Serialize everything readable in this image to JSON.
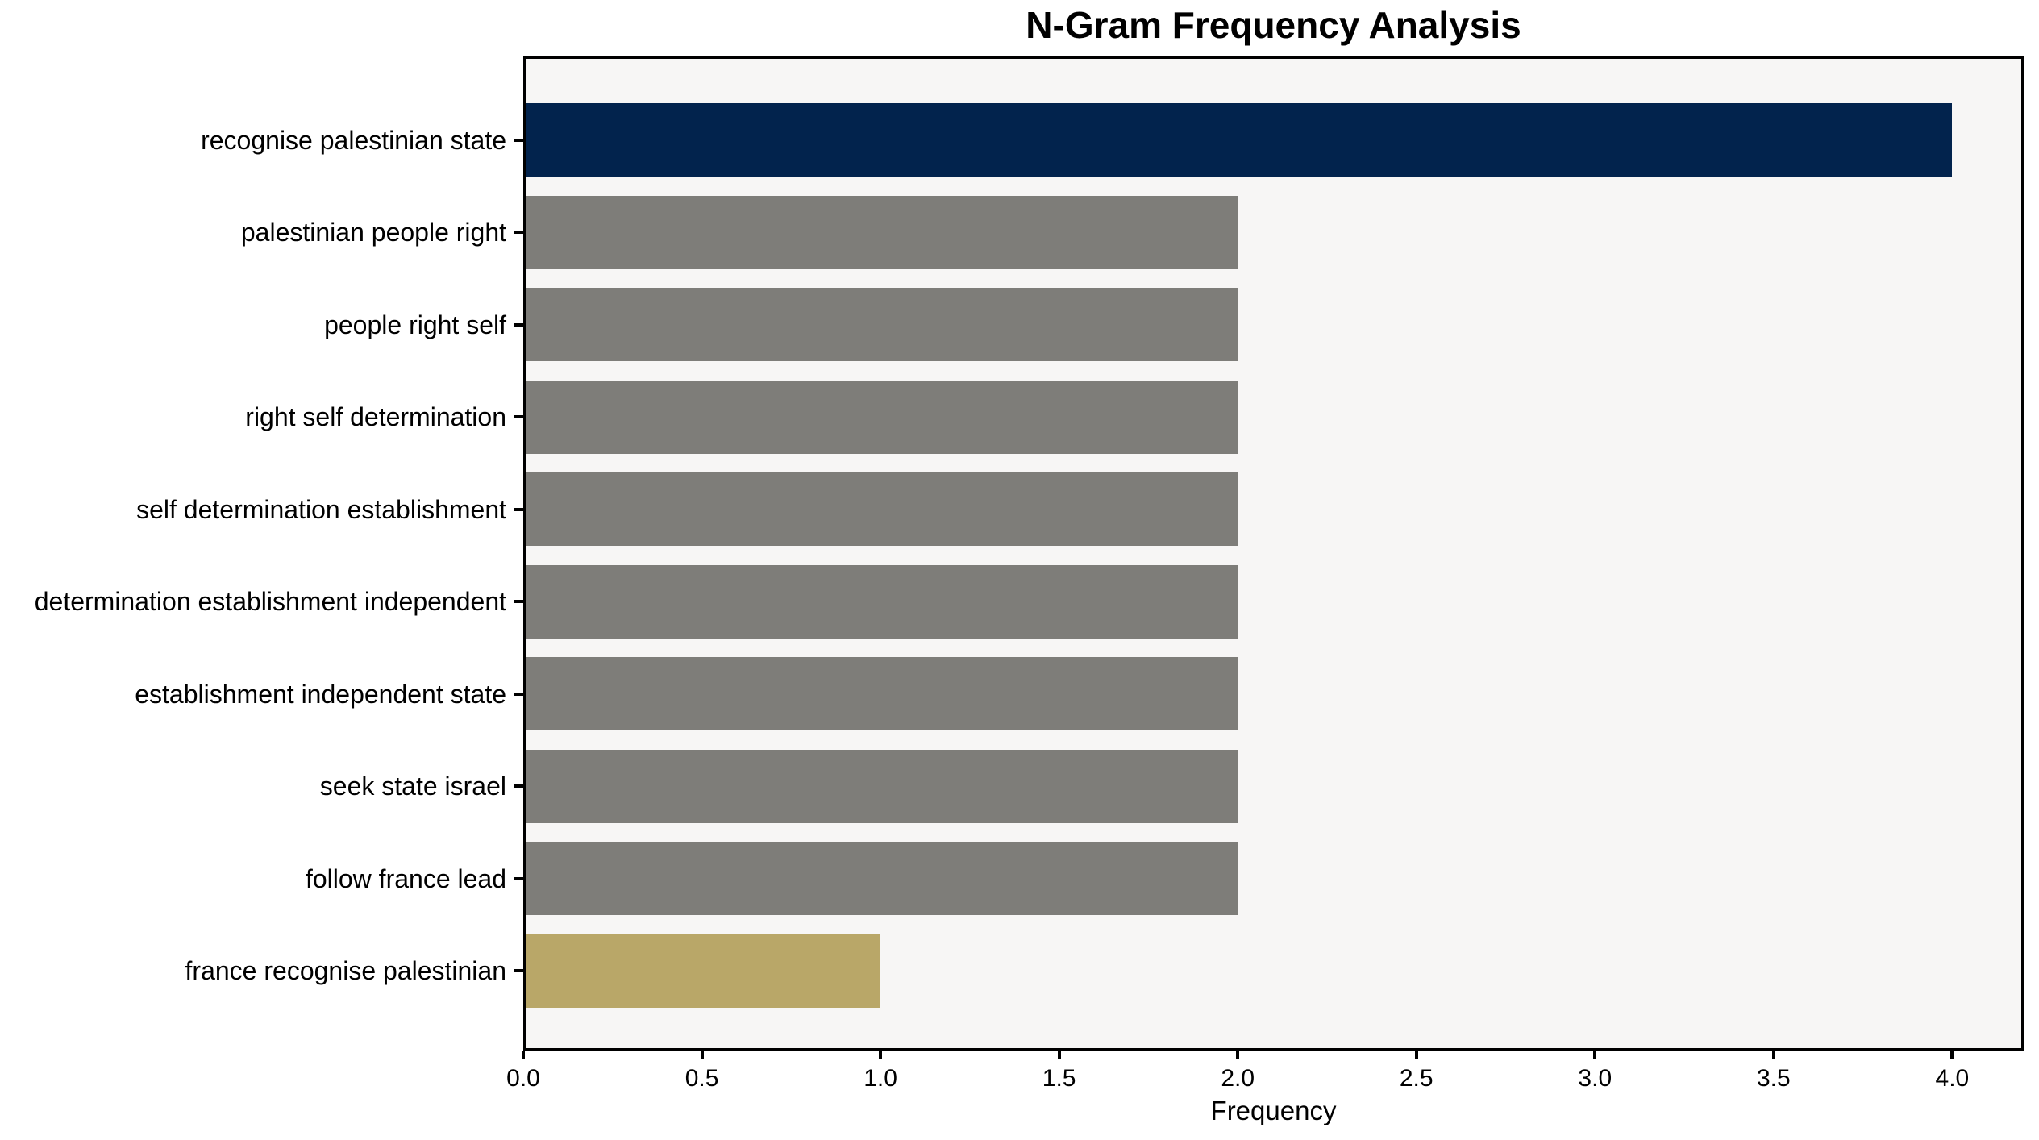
{
  "chart_data": {
    "type": "bar",
    "orientation": "horizontal",
    "title": "N-Gram Frequency Analysis",
    "xlabel": "Frequency",
    "ylabel": "",
    "categories": [
      "recognise palestinian state",
      "palestinian people right",
      "people right self",
      "right self determination",
      "self determination establishment",
      "determination establishment independent",
      "establishment independent state",
      "seek state israel",
      "follow france lead",
      "france recognise palestinian"
    ],
    "values": [
      4,
      2,
      2,
      2,
      2,
      2,
      2,
      2,
      2,
      1
    ],
    "bar_colors": [
      "#02234d",
      "#7e7d79",
      "#7e7d79",
      "#7e7d79",
      "#7e7d79",
      "#7e7d79",
      "#7e7d79",
      "#7e7d79",
      "#7e7d79",
      "#b9a768"
    ],
    "xlim": [
      0,
      4.2
    ],
    "xticks": [
      0,
      0.5,
      1,
      1.5,
      2,
      2.5,
      3,
      3.5,
      4
    ],
    "xtick_labels": [
      "0.0",
      "0.5",
      "1.0",
      "1.5",
      "2.0",
      "2.5",
      "3.0",
      "3.5",
      "4.0"
    ],
    "grid": false,
    "legend": false,
    "plot_background": "#f7f6f5",
    "figure_background": "#ffffff",
    "spine_color": "#000000",
    "text_color": "#000000"
  }
}
